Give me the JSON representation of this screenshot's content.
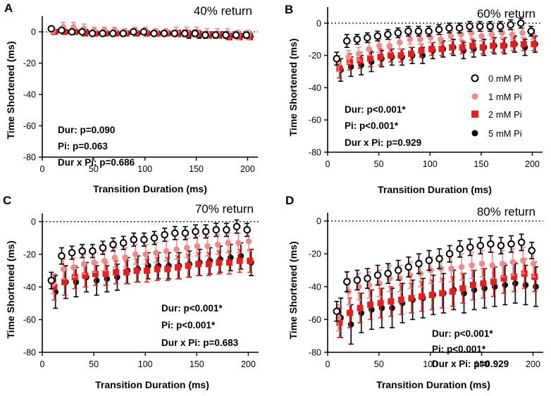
{
  "colors": {
    "0 mM Pi": "#000000",
    "1 mM Pi": "#f08a8a",
    "2 mM Pi": "#e61e1e",
    "5 mM Pi": "#000000"
  },
  "legend": {
    "entries": [
      "0 mM Pi",
      "1 mM Pi",
      "2 mM Pi",
      "5 mM Pi"
    ],
    "placement": "panel B, right side"
  },
  "chart_data": [
    {
      "panel": "A",
      "type": "scatter",
      "title": "40% return",
      "xlabel": "Transition Duration (ms)",
      "ylabel": "Time Shortened (ms)",
      "xlim": [
        0,
        210
      ],
      "ylim": [
        -80,
        10
      ],
      "xticks": [
        0,
        50,
        100,
        150,
        200
      ],
      "yticks": [
        0,
        -20,
        -40,
        -60,
        -80
      ],
      "stats": [
        "Dur: p=0.090",
        "Pi: p=0.063",
        "Dur x Pi: p=0.686"
      ],
      "x": [
        10,
        20,
        30,
        40,
        50,
        60,
        70,
        80,
        90,
        100,
        110,
        120,
        130,
        140,
        150,
        160,
        170,
        180,
        190,
        200
      ],
      "series": [
        {
          "name": "0 mM Pi",
          "values": [
            2,
            1,
            0,
            0,
            -1,
            -1,
            -1,
            -1,
            0,
            0,
            -1,
            -1,
            -1,
            -1,
            -1,
            -2,
            -2,
            -2,
            -2,
            -2
          ],
          "err": [
            1,
            1,
            1,
            1,
            1,
            1,
            1,
            1,
            1,
            1,
            1,
            1,
            1,
            2,
            2,
            2,
            2,
            2,
            2,
            2
          ]
        },
        {
          "name": "1 mM Pi",
          "values": [
            1,
            3,
            3,
            2,
            1,
            1,
            1,
            0,
            1,
            1,
            0,
            0,
            0,
            0,
            0,
            -1,
            -1,
            -1,
            -2,
            -2
          ],
          "err": [
            2,
            3,
            3,
            3,
            2,
            2,
            2,
            2,
            2,
            2,
            2,
            2,
            3,
            3,
            3,
            3,
            3,
            3,
            3,
            3
          ]
        },
        {
          "name": "2 mM Pi",
          "values": [
            0,
            0,
            0,
            -1,
            -1,
            -1,
            -1,
            -1,
            -1,
            -1,
            -1,
            -1,
            -1,
            -1,
            -1,
            -2,
            -2,
            -3,
            -3,
            -3
          ],
          "err": [
            1,
            1,
            1,
            1,
            1,
            1,
            1,
            1,
            1,
            1,
            1,
            1,
            2,
            2,
            2,
            2,
            2,
            2,
            2,
            2
          ]
        },
        {
          "name": "5 mM Pi",
          "values": [
            0,
            0,
            0,
            0,
            -1,
            -1,
            -1,
            -1,
            -1,
            -1,
            -1,
            -1,
            -1,
            -2,
            -2,
            -2,
            -2,
            -3,
            -3,
            -3
          ],
          "err": [
            1,
            1,
            1,
            1,
            1,
            1,
            1,
            1,
            1,
            1,
            1,
            1,
            2,
            2,
            2,
            2,
            2,
            2,
            2,
            2
          ]
        }
      ]
    },
    {
      "panel": "B",
      "type": "scatter",
      "title": "60% return",
      "xlabel": "Transition Duration (ms)",
      "ylabel": "Time Shortened (ms)",
      "xlim": [
        0,
        210
      ],
      "ylim": [
        -80,
        10
      ],
      "xticks": [
        0,
        50,
        100,
        150,
        200
      ],
      "yticks": [
        0,
        -20,
        -40,
        -60,
        -80
      ],
      "stats": [
        "Dur: p<0.001*",
        "Pi: p<0.001*",
        "Dur x Pi: p=0.929"
      ],
      "x": [
        10,
        20,
        30,
        40,
        50,
        60,
        70,
        80,
        90,
        100,
        110,
        120,
        130,
        140,
        150,
        160,
        170,
        180,
        190,
        200
      ],
      "series": [
        {
          "name": "0 mM Pi",
          "values": [
            -22,
            -11,
            -10,
            -9,
            -8,
            -7,
            -6,
            -5,
            -5,
            -5,
            -4,
            -3,
            -3,
            -2,
            -2,
            -2,
            -2,
            -1,
            0,
            -5
          ],
          "err": [
            4,
            4,
            3,
            3,
            3,
            3,
            3,
            3,
            3,
            3,
            3,
            3,
            3,
            3,
            3,
            3,
            3,
            3,
            3,
            3
          ]
        },
        {
          "name": "1 mM Pi",
          "values": [
            -25,
            -21,
            -19,
            -16,
            -14,
            -14,
            -12,
            -10,
            -10,
            -9,
            -10,
            -8,
            -7,
            -6,
            -8,
            -7,
            -6,
            -7,
            -6,
            -7
          ],
          "err": [
            5,
            4,
            4,
            4,
            4,
            4,
            4,
            3,
            3,
            3,
            3,
            3,
            3,
            3,
            3,
            3,
            3,
            3,
            3,
            3
          ]
        },
        {
          "name": "2 mM Pi",
          "values": [
            -28,
            -24,
            -23,
            -22,
            -21,
            -20,
            -20,
            -19,
            -17,
            -16,
            -16,
            -15,
            -15,
            -14,
            -15,
            -14,
            -14,
            -13,
            -13,
            -13
          ],
          "err": [
            6,
            5,
            5,
            5,
            5,
            4,
            4,
            4,
            4,
            4,
            4,
            4,
            4,
            4,
            4,
            4,
            4,
            4,
            4,
            4
          ]
        },
        {
          "name": "5 mM Pi",
          "values": [
            -29,
            -27,
            -26,
            -24,
            -22,
            -21,
            -21,
            -20,
            -20,
            -17,
            -16,
            -15,
            -17,
            -16,
            -15,
            -14,
            -14,
            -13,
            -15,
            -13
          ],
          "err": [
            7,
            6,
            6,
            6,
            5,
            5,
            5,
            5,
            5,
            5,
            5,
            5,
            5,
            5,
            5,
            5,
            5,
            5,
            5,
            5
          ]
        }
      ]
    },
    {
      "panel": "C",
      "type": "scatter",
      "title": "70% return",
      "xlabel": "Transition Duration (ms)",
      "ylabel": "Time Shortened (ms)",
      "xlim": [
        0,
        210
      ],
      "ylim": [
        -80,
        5
      ],
      "xticks": [
        0,
        50,
        100,
        150,
        200
      ],
      "yticks": [
        0,
        -20,
        -40,
        -60,
        -80
      ],
      "stats": [
        "Dur: p<0.001*",
        "Pi: p<0.001*",
        "Dur x Pi: p=0.683"
      ],
      "x": [
        10,
        20,
        30,
        40,
        50,
        60,
        70,
        80,
        90,
        100,
        110,
        120,
        130,
        140,
        150,
        160,
        170,
        180,
        190,
        200
      ],
      "series": [
        {
          "name": "0 mM Pi",
          "values": [
            -36,
            -21,
            -19,
            -18,
            -18,
            -16,
            -14,
            -13,
            -11,
            -11,
            -10,
            -8,
            -7,
            -7,
            -6,
            -6,
            -5,
            -5,
            -3,
            -5
          ],
          "err": [
            5,
            5,
            4,
            4,
            4,
            4,
            4,
            4,
            4,
            4,
            4,
            4,
            4,
            4,
            4,
            4,
            4,
            4,
            4,
            4
          ]
        },
        {
          "name": "1 mM Pi",
          "values": [
            -38,
            -29,
            -28,
            -26,
            -25,
            -24,
            -22,
            -22,
            -20,
            -20,
            -19,
            -18,
            -17,
            -16,
            -15,
            -15,
            -14,
            -13,
            -13,
            -12
          ],
          "err": [
            6,
            6,
            6,
            6,
            6,
            6,
            6,
            6,
            6,
            6,
            6,
            6,
            6,
            6,
            6,
            6,
            6,
            6,
            6,
            6
          ]
        },
        {
          "name": "2 mM Pi",
          "values": [
            -40,
            -37,
            -34,
            -33,
            -32,
            -32,
            -31,
            -31,
            -30,
            -30,
            -29,
            -29,
            -28,
            -27,
            -26,
            -26,
            -25,
            -25,
            -24,
            -24
          ],
          "err": [
            8,
            8,
            7,
            7,
            7,
            7,
            7,
            7,
            7,
            7,
            7,
            7,
            7,
            7,
            7,
            7,
            7,
            7,
            7,
            7
          ]
        },
        {
          "name": "5 mM Pi",
          "values": [
            -43,
            -37,
            -37,
            -34,
            -36,
            -35,
            -34,
            -30,
            -29,
            -27,
            -27,
            -27,
            -27,
            -26,
            -25,
            -24,
            -23,
            -22,
            -21,
            -25
          ],
          "err": [
            10,
            10,
            9,
            9,
            9,
            8,
            8,
            8,
            8,
            8,
            8,
            8,
            8,
            8,
            8,
            8,
            8,
            8,
            8,
            8
          ]
        }
      ]
    },
    {
      "panel": "D",
      "type": "scatter",
      "title": "80% return",
      "xlabel": "Transition Duration (ms)",
      "ylabel": "Time Shortened (ms)",
      "xlim": [
        0,
        210
      ],
      "ylim": [
        -80,
        5
      ],
      "xticks": [
        0,
        50,
        100,
        150,
        200
      ],
      "yticks": [
        0,
        -20,
        -40,
        -60,
        -80
      ],
      "stats": [
        "Dur: p<0.001*",
        "Pi: p<0.001*",
        "Dur x Pi: p=0.929"
      ],
      "x": [
        10,
        20,
        30,
        40,
        50,
        60,
        70,
        80,
        90,
        100,
        110,
        120,
        130,
        140,
        150,
        160,
        170,
        180,
        190,
        200
      ],
      "series": [
        {
          "name": "0 mM Pi",
          "values": [
            -55,
            -37,
            -36,
            -35,
            -33,
            -32,
            -30,
            -28,
            -26,
            -24,
            -23,
            -20,
            -17,
            -16,
            -15,
            -14,
            -15,
            -14,
            -13,
            -18
          ],
          "err": [
            6,
            6,
            6,
            6,
            6,
            6,
            6,
            6,
            6,
            6,
            6,
            5,
            5,
            5,
            5,
            5,
            5,
            5,
            5,
            5
          ]
        },
        {
          "name": "1 mM Pi",
          "values": [
            -59,
            -43,
            -40,
            -39,
            -38,
            -35,
            -35,
            -33,
            -32,
            -30,
            -29,
            -29,
            -28,
            -27,
            -26,
            -27,
            -26,
            -25,
            -24,
            -26
          ],
          "err": [
            8,
            8,
            8,
            8,
            8,
            8,
            8,
            8,
            8,
            8,
            8,
            8,
            8,
            8,
            8,
            8,
            8,
            8,
            8,
            8
          ]
        },
        {
          "name": "2 mM Pi",
          "values": [
            -62,
            -56,
            -53,
            -51,
            -50,
            -49,
            -48,
            -47,
            -46,
            -45,
            -44,
            -43,
            -41,
            -39,
            -38,
            -37,
            -35,
            -34,
            -32,
            -34
          ],
          "err": [
            9,
            9,
            9,
            9,
            9,
            9,
            9,
            9,
            9,
            9,
            9,
            9,
            9,
            9,
            9,
            9,
            9,
            9,
            9,
            9
          ]
        },
        {
          "name": "5 mM Pi",
          "values": [
            -59,
            -63,
            -56,
            -54,
            -53,
            -53,
            -50,
            -48,
            -47,
            -45,
            -44,
            -42,
            -44,
            -42,
            -41,
            -40,
            -39,
            -38,
            -39,
            -40
          ],
          "err": [
            12,
            12,
            12,
            12,
            12,
            12,
            12,
            12,
            12,
            12,
            12,
            12,
            12,
            12,
            12,
            12,
            12,
            12,
            12,
            12
          ]
        }
      ]
    }
  ]
}
